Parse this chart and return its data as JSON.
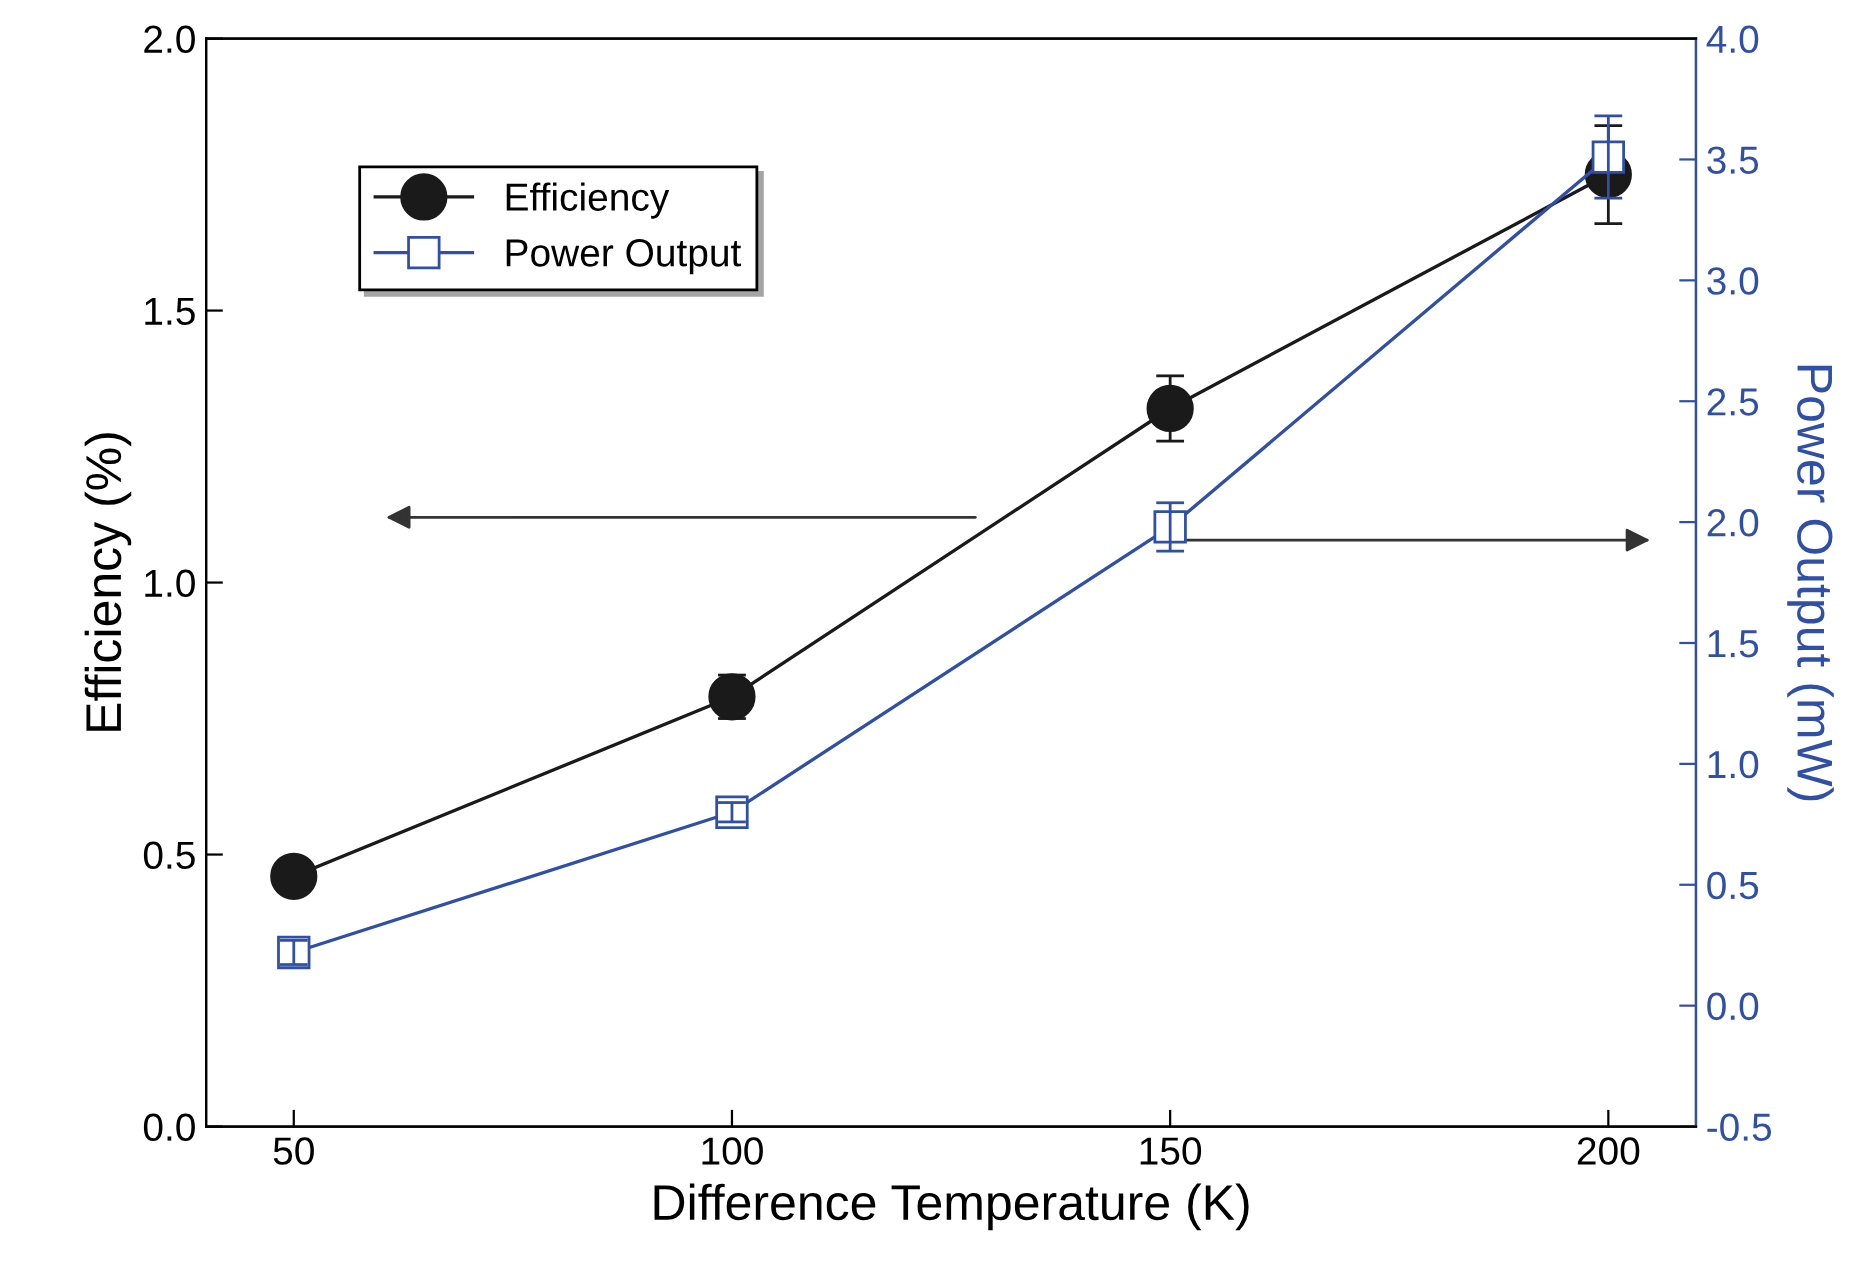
{
  "chart_data": {
    "type": "line",
    "xlabel": "Difference Temperature (K)",
    "ylabel": "Efficiency (%)",
    "y2label": "Power Output (mW)",
    "x": [
      50,
      100,
      150,
      200
    ],
    "series": [
      {
        "name": "Efficiency",
        "color": "#1a1a1a",
        "marker": "circle",
        "values": [
          0.46,
          0.79,
          1.32,
          1.75
        ],
        "errors": [
          null,
          0.04,
          0.06,
          0.09
        ]
      },
      {
        "name": "Power Output",
        "color": "#3050a8",
        "marker": "square",
        "axis": "y2",
        "values": [
          0.22,
          0.8,
          1.98,
          3.51
        ],
        "errors": [
          0.05,
          0.04,
          0.1,
          0.17
        ]
      }
    ],
    "xlim": [
      40,
      210
    ],
    "xticks": [
      50,
      100,
      150,
      200
    ],
    "ylim": [
      0,
      2.0
    ],
    "yticks": [
      {
        "value": 0,
        "label": "0.0"
      },
      0.5,
      {
        "value": 1,
        "label": "1.0"
      },
      1.5,
      {
        "value": 2,
        "label": "2.0"
      }
    ],
    "y2lim": [
      -0.5,
      4.0
    ],
    "y2ticks": [
      -0.5,
      {
        "value": 0,
        "label": "0.0"
      },
      0.5,
      {
        "value": 1,
        "label": "1.0"
      },
      1.5,
      {
        "value": 2,
        "label": "2.0"
      },
      2.5,
      {
        "value": 3,
        "label": "3.0"
      },
      3.5,
      {
        "value": 4,
        "label": "4.0"
      }
    ],
    "legend": "top left",
    "grid": false,
    "line_style": "solid"
  }
}
